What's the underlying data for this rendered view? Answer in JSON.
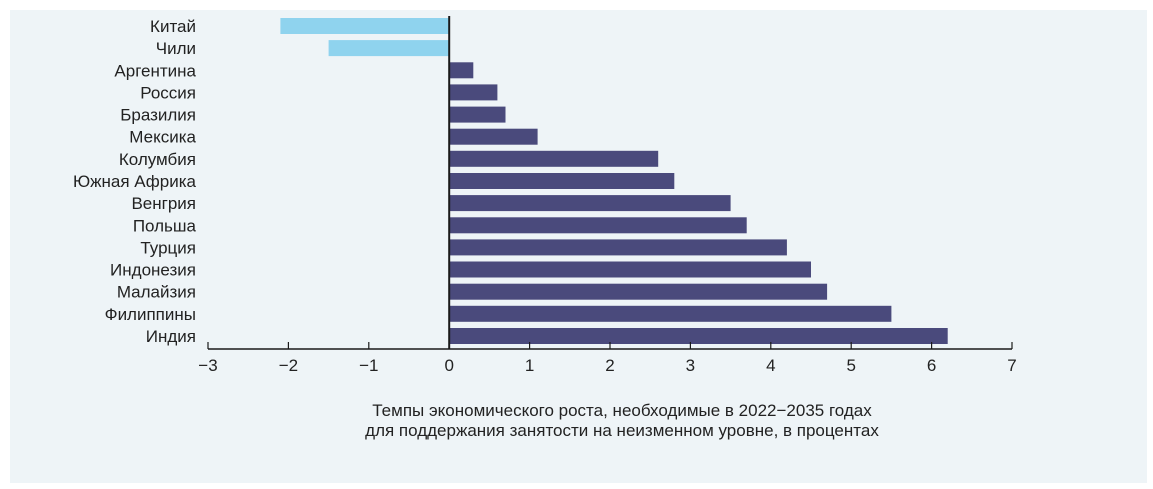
{
  "chart_data": {
    "type": "bar",
    "orientation": "horizontal",
    "categories": [
      "Китай",
      "Чили",
      "Аргентина",
      "Россия",
      "Бразилия",
      "Мексика",
      "Колумбия",
      "Южная Африка",
      "Венгрия",
      "Польша",
      "Турция",
      "Индонезия",
      "Малайзия",
      "Филиппины",
      "Индия"
    ],
    "values": [
      -2.1,
      -1.5,
      0.3,
      0.6,
      0.7,
      1.1,
      2.6,
      2.8,
      3.5,
      3.7,
      4.2,
      4.5,
      4.7,
      5.5,
      6.2
    ],
    "xlim": [
      -3,
      7
    ],
    "xticks": [
      "−3",
      "−2",
      "−1",
      "0",
      "1",
      "2",
      "3",
      "4",
      "5",
      "6",
      "7"
    ],
    "xlabel_line1": "Темпы экономического роста, необходимые в 2022−2035 годах",
    "xlabel_line2": "для поддержания занятости на неизменном уровне, в процентах",
    "grid": false,
    "colors": {
      "negative": "#8fd3ee",
      "positive": "#4a4a7c",
      "axis": "#1a1a1a",
      "text": "#222222"
    }
  }
}
